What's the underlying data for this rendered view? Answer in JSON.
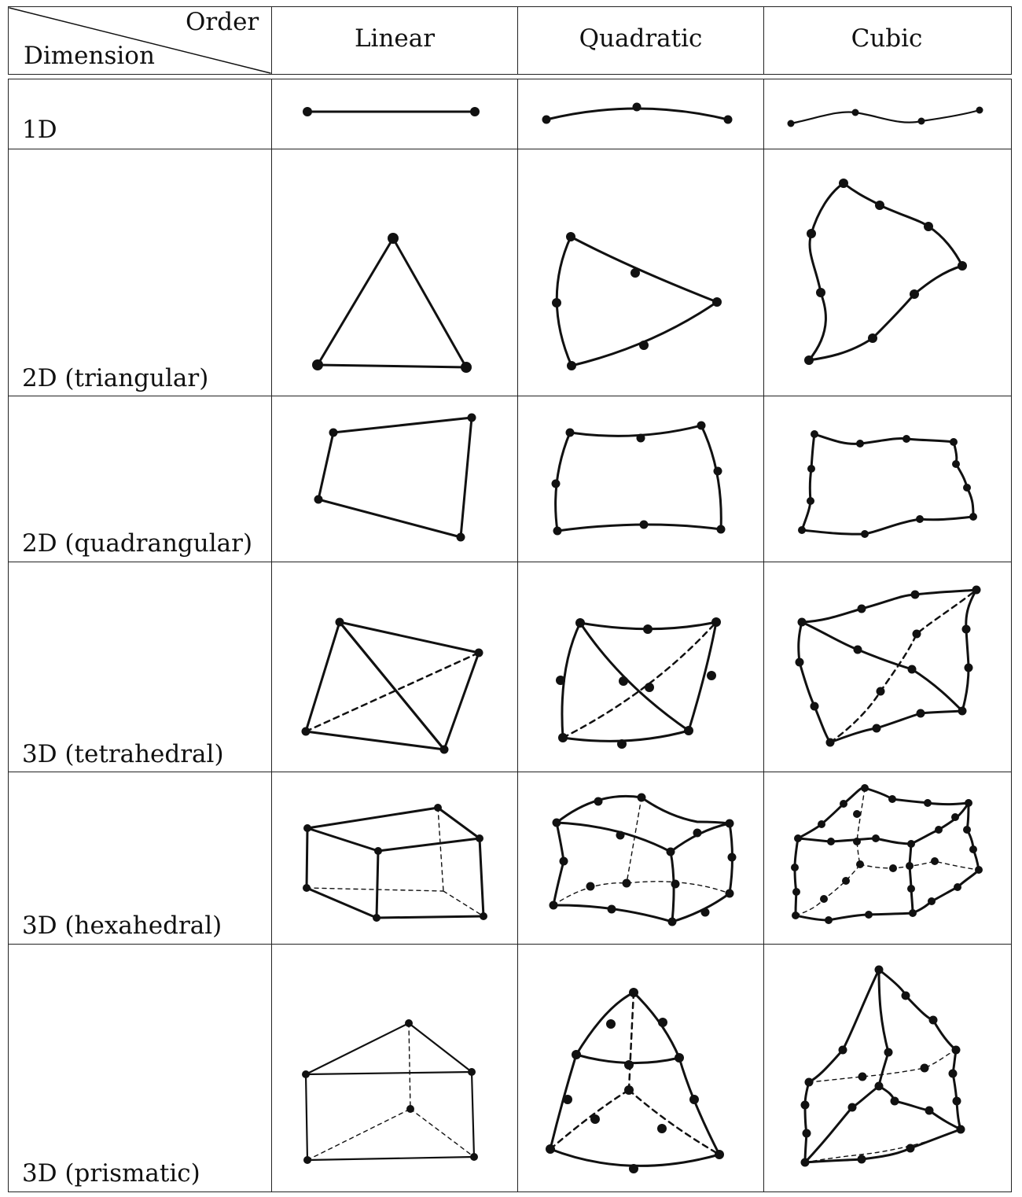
{
  "header": {
    "corner_order": "Order",
    "corner_dimension": "Dimension",
    "columns": [
      "Linear",
      "Quadratic",
      "Cubic"
    ]
  },
  "rows": [
    {
      "label": "1D"
    },
    {
      "label": "2D (triangular)"
    },
    {
      "label": "2D (quadrangular)"
    },
    {
      "label": "3D (tetrahedral)"
    },
    {
      "label": "3D (hexahedral)"
    },
    {
      "label": "3D (prismatic)"
    }
  ],
  "icons": {
    "element_sketch": "finite-element-shape-icon"
  }
}
